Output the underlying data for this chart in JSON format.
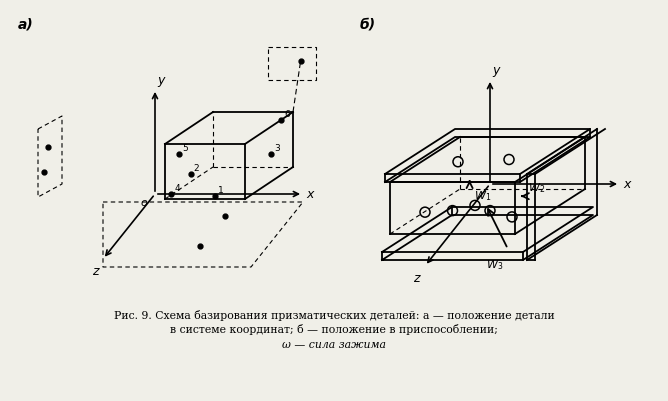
{
  "fig_width": 6.68,
  "fig_height": 4.02,
  "dpi": 100,
  "bg_color": "#f0efe8",
  "caption_line1": "Рис. 9. Схема базирования призматических деталей: а — положение детали",
  "caption_line2": "в системе координат; б — положение в приспособлении;",
  "caption_line3": "ω — сила зажима"
}
